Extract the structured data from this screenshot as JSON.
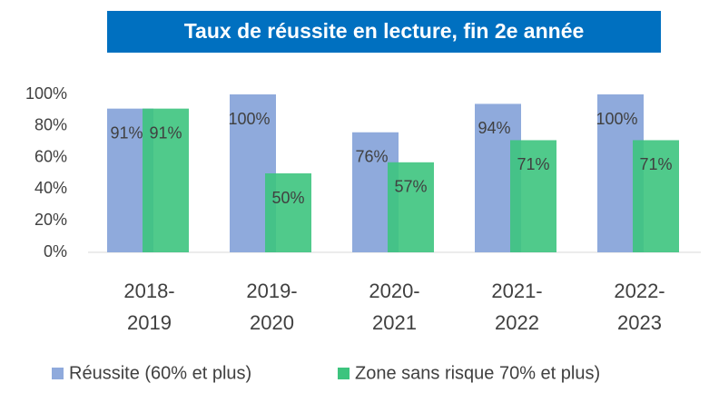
{
  "chart_data": {
    "type": "bar",
    "title": "Taux de réussite en lecture, fin 2e année",
    "categories": [
      "2018-2019",
      "2019-2020",
      "2020-2021",
      "2021-2022",
      "2022-2023"
    ],
    "series": [
      {
        "name": "Réussite (60% et plus)",
        "color": "#8faadc",
        "values": [
          91,
          100,
          76,
          94,
          100
        ],
        "value_labels": [
          "91%",
          "100%",
          "76%",
          "94%",
          "100%"
        ]
      },
      {
        "name": "Zone sans risque 70% et plus)",
        "color": "#3dc47e",
        "values": [
          91,
          50,
          57,
          71,
          71
        ],
        "value_labels": [
          "91%",
          "50%",
          "57%",
          "71%",
          "71%"
        ]
      }
    ],
    "ylim": [
      0,
      100
    ],
    "yticks": [
      {
        "value": 0,
        "label": "0%"
      },
      {
        "value": 20,
        "label": "20%"
      },
      {
        "value": 40,
        "label": "40%"
      },
      {
        "value": 60,
        "label": "60%"
      },
      {
        "value": 80,
        "label": "80%"
      },
      {
        "value": 100,
        "label": "100%"
      }
    ],
    "grid": false,
    "legend": "bottom"
  }
}
